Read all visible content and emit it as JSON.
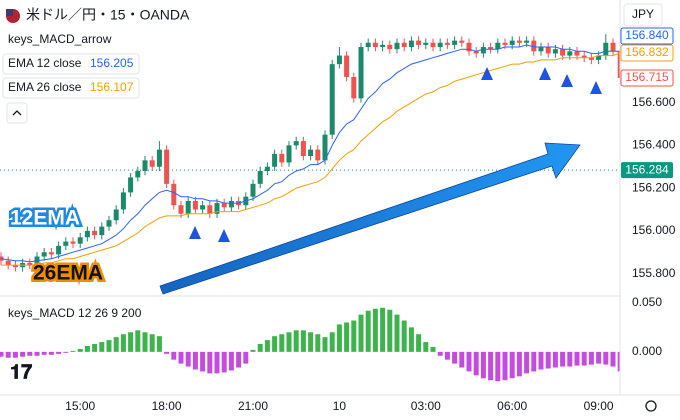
{
  "header": {
    "symbol": "米ドル／円・15・OANDA",
    "currency": "JPY"
  },
  "chart_data": [
    {
      "type": "candlestick",
      "title": "keys_MACD_arrow",
      "categories": [
        null,
        null,
        null,
        null,
        null,
        null,
        null,
        null,
        null,
        null,
        null,
        "15:00",
        null,
        null,
        null,
        null,
        null,
        null,
        null,
        null,
        null,
        null,
        null,
        "18:00",
        null,
        null,
        null,
        null,
        null,
        null,
        null,
        null,
        null,
        null,
        null,
        "21:00",
        null,
        null,
        null,
        null,
        null,
        null,
        null,
        null,
        null,
        null,
        null,
        "10",
        null,
        null,
        null,
        null,
        null,
        null,
        null,
        null,
        null,
        null,
        null,
        "03:00",
        null,
        null,
        null,
        null,
        null,
        null,
        null,
        null,
        null,
        null,
        null,
        "06:00",
        null,
        null,
        null,
        null,
        null,
        null,
        null,
        null,
        null,
        null,
        null,
        "09:00",
        null,
        null,
        null
      ],
      "open": [
        155.88,
        155.86,
        155.84,
        155.83,
        155.85,
        155.84,
        155.88,
        155.9,
        155.89,
        155.93,
        155.95,
        155.94,
        155.97,
        156.0,
        155.98,
        156.02,
        156.05,
        156.1,
        156.18,
        156.25,
        156.28,
        156.33,
        156.3,
        156.38,
        156.22,
        156.12,
        156.08,
        156.14,
        156.1,
        156.12,
        156.08,
        156.13,
        156.11,
        156.14,
        156.12,
        156.16,
        156.22,
        156.28,
        156.3,
        156.36,
        156.32,
        156.4,
        156.42,
        156.35,
        156.38,
        156.33,
        156.45,
        156.78,
        156.82,
        156.72,
        156.62,
        156.86,
        156.88,
        156.86,
        156.87,
        156.85,
        156.88,
        156.86,
        156.89,
        156.87,
        156.88,
        156.86,
        156.88,
        156.87,
        156.89,
        156.88,
        156.84,
        156.83,
        156.86,
        156.85,
        156.88,
        156.87,
        156.89,
        156.88,
        156.89,
        156.84,
        156.86,
        156.83,
        156.85,
        156.82,
        156.84,
        156.82,
        156.81,
        156.8,
        156.82,
        156.88,
        156.84
      ],
      "high": [
        155.9,
        155.88,
        155.86,
        155.87,
        155.87,
        155.9,
        155.92,
        155.92,
        155.95,
        155.97,
        155.97,
        155.99,
        156.02,
        156.02,
        156.04,
        156.07,
        156.12,
        156.2,
        156.27,
        156.3,
        156.35,
        156.35,
        156.42,
        156.4,
        156.24,
        156.14,
        156.16,
        156.16,
        156.14,
        156.14,
        156.15,
        156.15,
        156.16,
        156.16,
        156.18,
        156.24,
        156.3,
        156.32,
        156.38,
        156.38,
        156.42,
        156.44,
        156.44,
        156.4,
        156.4,
        156.47,
        156.8,
        156.86,
        156.84,
        156.74,
        156.88,
        156.9,
        156.9,
        156.89,
        156.89,
        156.9,
        156.9,
        156.91,
        156.91,
        156.9,
        156.9,
        156.9,
        156.9,
        156.91,
        156.91,
        156.9,
        156.86,
        156.88,
        156.88,
        156.9,
        156.9,
        156.91,
        156.91,
        156.91,
        156.91,
        156.88,
        156.88,
        156.87,
        156.87,
        156.86,
        156.86,
        156.84,
        156.83,
        156.84,
        156.92,
        156.9,
        156.86
      ],
      "low": [
        155.84,
        155.82,
        155.81,
        155.81,
        155.82,
        155.82,
        155.86,
        155.87,
        155.87,
        155.91,
        155.92,
        155.92,
        155.95,
        155.96,
        155.96,
        156.0,
        156.03,
        156.08,
        156.16,
        156.23,
        156.26,
        156.28,
        156.28,
        156.2,
        156.1,
        156.06,
        156.06,
        156.08,
        156.08,
        156.06,
        156.06,
        156.09,
        156.09,
        156.1,
        156.1,
        156.14,
        156.2,
        156.26,
        156.28,
        156.3,
        156.3,
        156.38,
        156.33,
        156.33,
        156.31,
        156.31,
        156.43,
        156.76,
        156.7,
        156.6,
        156.6,
        156.84,
        156.84,
        156.84,
        156.83,
        156.83,
        156.84,
        156.84,
        156.85,
        156.85,
        156.84,
        156.84,
        156.85,
        156.85,
        156.86,
        156.82,
        156.81,
        156.81,
        156.83,
        156.83,
        156.85,
        156.85,
        156.86,
        156.86,
        156.82,
        156.82,
        156.81,
        156.81,
        156.8,
        156.8,
        156.8,
        156.79,
        156.78,
        156.78,
        156.8,
        156.82,
        156.7
      ],
      "close": [
        155.86,
        155.84,
        155.83,
        155.85,
        155.84,
        155.88,
        155.9,
        155.89,
        155.93,
        155.95,
        155.94,
        155.97,
        156.0,
        155.98,
        156.02,
        156.05,
        156.1,
        156.18,
        156.25,
        156.28,
        156.33,
        156.3,
        156.38,
        156.22,
        156.12,
        156.08,
        156.14,
        156.1,
        156.12,
        156.08,
        156.13,
        156.11,
        156.14,
        156.12,
        156.16,
        156.22,
        156.28,
        156.3,
        156.36,
        156.32,
        156.4,
        156.42,
        156.35,
        156.38,
        156.33,
        156.45,
        156.78,
        156.82,
        156.72,
        156.62,
        156.86,
        156.88,
        156.86,
        156.87,
        156.85,
        156.88,
        156.86,
        156.89,
        156.87,
        156.88,
        156.86,
        156.88,
        156.87,
        156.89,
        156.88,
        156.84,
        156.83,
        156.86,
        156.85,
        156.88,
        156.87,
        156.89,
        156.88,
        156.89,
        156.84,
        156.86,
        156.83,
        156.85,
        156.82,
        156.84,
        156.82,
        156.81,
        156.8,
        156.82,
        156.88,
        156.84,
        156.715
      ],
      "up_color": "#1b8a6b",
      "down_color": "#ef5350",
      "series": [
        {
          "name": "EMA 12 close",
          "legend_value": 156.205,
          "color": "#2962ff",
          "values": [
            155.87,
            155.865,
            155.86,
            155.86,
            155.855,
            155.86,
            155.865,
            155.87,
            155.88,
            155.89,
            155.9,
            155.91,
            155.92,
            155.93,
            155.94,
            155.96,
            155.98,
            156.01,
            156.05,
            156.08,
            156.12,
            156.15,
            156.18,
            156.19,
            156.18,
            156.16,
            156.16,
            156.15,
            156.15,
            156.14,
            156.14,
            156.13,
            156.13,
            156.13,
            156.14,
            156.15,
            156.17,
            156.19,
            156.22,
            156.23,
            156.26,
            156.28,
            156.29,
            156.31,
            156.31,
            156.33,
            156.4,
            156.46,
            156.5,
            156.52,
            156.57,
            156.62,
            156.65,
            156.69,
            156.71,
            156.74,
            156.76,
            156.78,
            156.79,
            156.8,
            156.81,
            156.82,
            156.83,
            156.84,
            156.85,
            156.85,
            156.84,
            156.85,
            156.85,
            156.85,
            156.86,
            156.86,
            156.86,
            156.87,
            156.86,
            156.86,
            156.86,
            156.86,
            156.85,
            156.85,
            156.84,
            156.84,
            156.83,
            156.83,
            156.84,
            156.84,
            156.84
          ]
        },
        {
          "name": "EMA 26 close",
          "legend_value": 156.107,
          "color": "#f59f00",
          "values": [
            155.84,
            155.84,
            155.84,
            155.84,
            155.84,
            155.84,
            155.85,
            155.85,
            155.86,
            155.87,
            155.87,
            155.88,
            155.89,
            155.9,
            155.91,
            155.92,
            155.93,
            155.95,
            155.97,
            155.99,
            156.02,
            156.04,
            156.06,
            156.07,
            156.07,
            156.07,
            156.08,
            156.08,
            156.08,
            156.08,
            156.09,
            156.09,
            156.09,
            156.09,
            156.1,
            156.11,
            156.12,
            156.13,
            156.15,
            156.16,
            156.18,
            156.2,
            156.21,
            156.22,
            156.23,
            156.25,
            156.29,
            156.33,
            156.36,
            156.38,
            156.42,
            156.45,
            156.48,
            156.51,
            156.53,
            156.56,
            156.58,
            156.6,
            156.62,
            156.64,
            156.65,
            156.67,
            156.68,
            156.7,
            156.71,
            156.72,
            156.73,
            156.74,
            156.75,
            156.76,
            156.77,
            156.78,
            156.78,
            156.79,
            156.79,
            156.8,
            156.8,
            156.8,
            156.81,
            156.81,
            156.81,
            156.81,
            156.81,
            156.82,
            156.82,
            156.82,
            156.832
          ]
        }
      ],
      "tags": [
        {
          "value": 156.84,
          "label": "156.840",
          "color": "#2962ff"
        },
        {
          "value": 156.832,
          "label": "156.832",
          "color": "#f59f00"
        },
        {
          "value": 156.715,
          "label": "156.715",
          "color": "#ef5350"
        }
      ],
      "price_line": 156.284,
      "price_line_color": "#089981",
      "annotations": [
        "12EMA",
        "26EMA"
      ],
      "ylim": [
        155.7,
        157.08
      ],
      "yticks": [
        {
          "value": 155.8,
          "label": "155.800"
        },
        {
          "value": 156,
          "label": "156.000"
        },
        {
          "value": 156.2,
          "label": "156.200"
        },
        {
          "value": 156.4,
          "label": "156.400"
        },
        {
          "value": 156.6,
          "label": "156.600"
        }
      ],
      "grid": false
    },
    {
      "type": "bar",
      "title": "keys_MACD 12 26 9 200",
      "values": [
        -0.005,
        -0.006,
        -0.006,
        -0.005,
        -0.004,
        -0.004,
        -0.003,
        -0.003,
        -0.002,
        -0.001,
        0.001,
        0.003,
        0.006,
        0.008,
        0.01,
        0.012,
        0.015,
        0.018,
        0.02,
        0.022,
        0.02,
        0.018,
        0.016,
        -0.002,
        -0.008,
        -0.012,
        -0.015,
        -0.018,
        -0.02,
        -0.022,
        -0.022,
        -0.021,
        -0.019,
        -0.016,
        -0.012,
        0.002,
        0.008,
        0.012,
        0.016,
        0.018,
        0.02,
        0.022,
        0.022,
        0.02,
        0.018,
        0.015,
        0.02,
        0.028,
        0.03,
        0.032,
        0.038,
        0.042,
        0.044,
        0.045,
        0.043,
        0.038,
        0.032,
        0.025,
        0.018,
        0.01,
        0.005,
        -0.004,
        -0.008,
        -0.012,
        -0.016,
        -0.02,
        -0.024,
        -0.027,
        -0.029,
        -0.03,
        -0.029,
        -0.027,
        -0.025,
        -0.022,
        -0.02,
        -0.018,
        -0.017,
        -0.016,
        -0.015,
        -0.015,
        -0.014,
        -0.014,
        -0.013,
        -0.012,
        -0.013,
        -0.015,
        -0.02
      ],
      "pos_color": "#3cb44b",
      "neg_color": "#c74ae0",
      "ylim": [
        -0.041,
        0.055
      ],
      "yticks": [
        {
          "value": 0,
          "label": "0.000"
        },
        {
          "value": 0.05,
          "label": "0.050"
        }
      ]
    }
  ]
}
